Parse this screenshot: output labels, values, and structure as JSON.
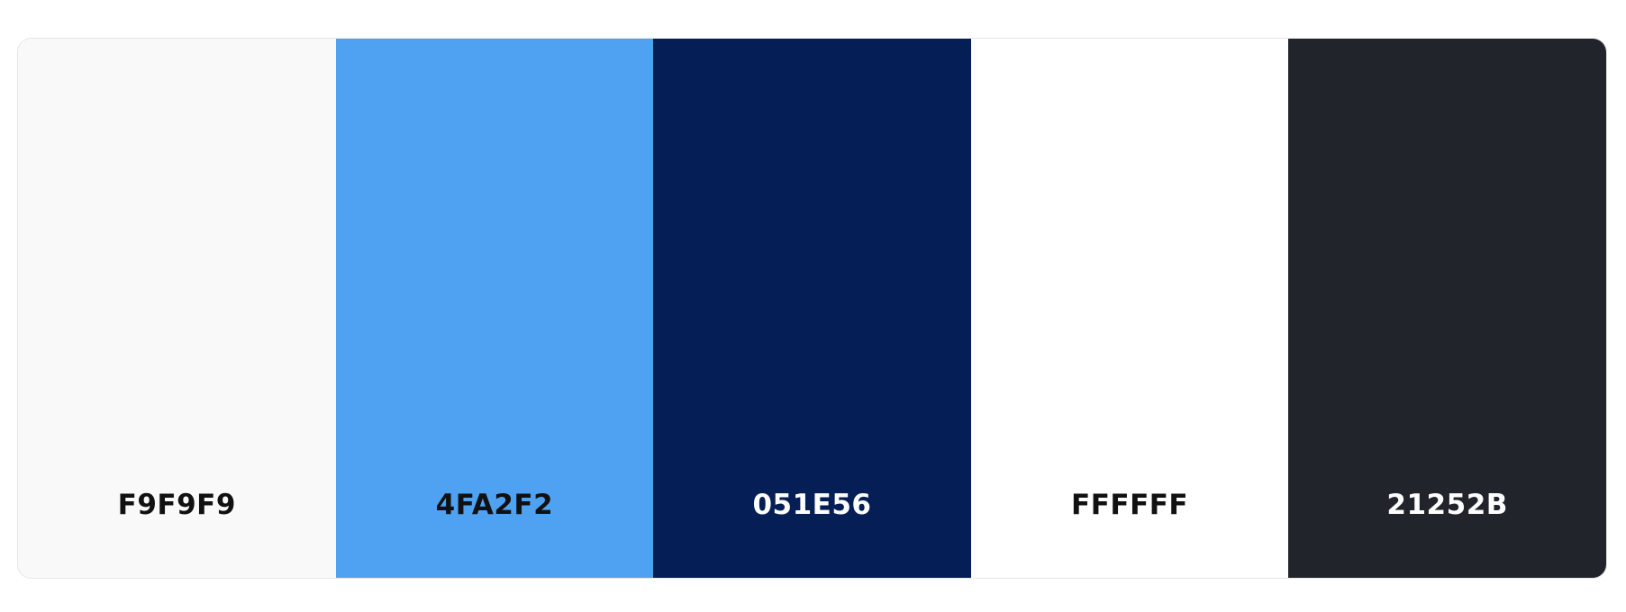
{
  "palette": {
    "swatches": [
      {
        "hex": "F9F9F9",
        "color": "#F9F9F9",
        "text_color": "#111111"
      },
      {
        "hex": "4FA2F2",
        "color": "#4FA2F2",
        "text_color": "#111111"
      },
      {
        "hex": "051E56",
        "color": "#051E56",
        "text_color": "#FFFFFF"
      },
      {
        "hex": "FFFFFF",
        "color": "#FFFFFF",
        "text_color": "#111111"
      },
      {
        "hex": "21252B",
        "color": "#21252B",
        "text_color": "#FFFFFF"
      }
    ]
  }
}
